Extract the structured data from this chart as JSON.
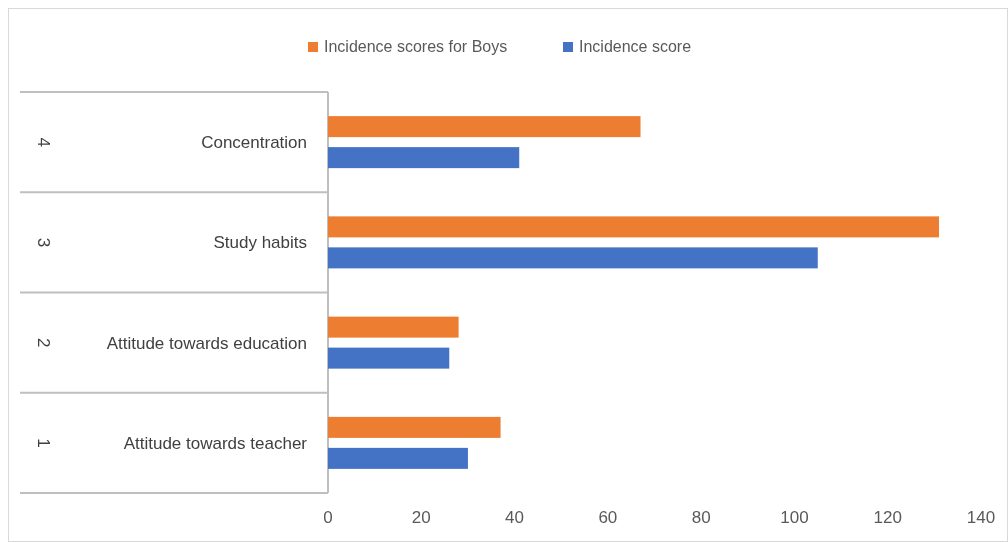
{
  "chart_data": {
    "type": "bar",
    "orientation": "horizontal",
    "categories": [
      "Concentration",
      "Study habits",
      "Attitude towards education",
      "Attitude towards teacher"
    ],
    "annotations": [
      "4",
      "3",
      "2",
      "1"
    ],
    "series": [
      {
        "name": "Incidence scores for Boys",
        "color": "#ed7d31",
        "values": [
          67,
          131,
          28,
          37
        ]
      },
      {
        "name": "Incidence score",
        "color": "#4472c4",
        "values": [
          41,
          105,
          26,
          30
        ]
      }
    ],
    "xlim": [
      0,
      140
    ],
    "xticks": [
      0,
      20,
      40,
      60,
      80,
      100,
      120,
      140
    ],
    "grid": false,
    "legend": "top"
  }
}
